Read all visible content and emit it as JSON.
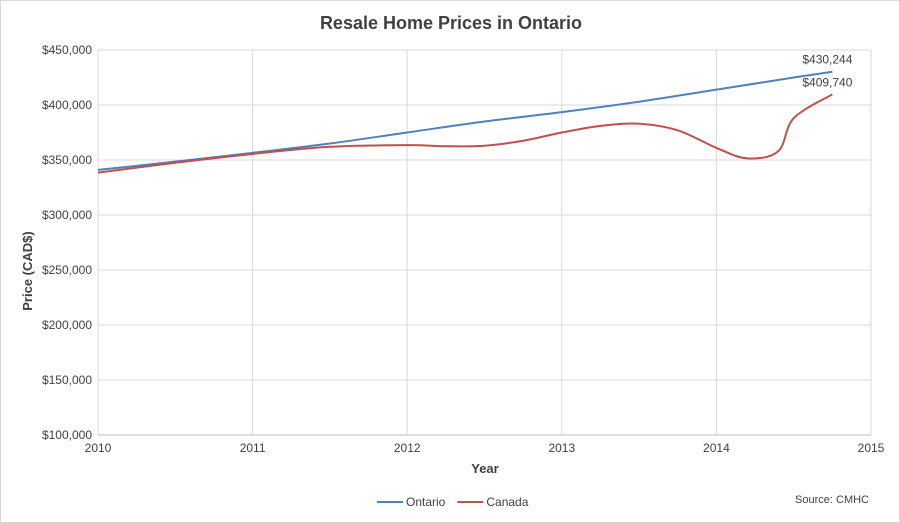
{
  "chart_data": {
    "type": "line",
    "title": "Resale Home Prices in Ontario",
    "xlabel": "Year",
    "ylabel": "Price (CAD$)",
    "source": "Source: CMHC",
    "xlim": [
      2010,
      2015
    ],
    "ylim": [
      100000,
      450000
    ],
    "x_ticks": [
      2010,
      2011,
      2012,
      2013,
      2014,
      2015
    ],
    "x_tick_labels": [
      "2010",
      "2011",
      "2012",
      "2013",
      "2014",
      "2015"
    ],
    "y_ticks": [
      100000,
      150000,
      200000,
      250000,
      300000,
      350000,
      400000,
      450000
    ],
    "y_tick_labels": [
      "$100,000",
      "$150,000",
      "$200,000",
      "$250,000",
      "$300,000",
      "$350,000",
      "$400,000",
      "$450,000"
    ],
    "grid": true,
    "legend_position": "bottom",
    "series": [
      {
        "name": "Ontario",
        "color": "#4f81bd",
        "x": [
          2010,
          2010.5,
          2011,
          2011.5,
          2012,
          2012.5,
          2013,
          2013.5,
          2014,
          2014.5,
          2014.75
        ],
        "y": [
          341000,
          348500,
          356500,
          365000,
          375000,
          385000,
          393500,
          403000,
          414000,
          425000,
          430244
        ],
        "end_label": "$430,244"
      },
      {
        "name": "Canada",
        "color": "#c0504d",
        "x": [
          2010,
          2010.5,
          2011,
          2011.5,
          2012,
          2012.25,
          2012.5,
          2012.75,
          2013,
          2013.25,
          2013.5,
          2013.75,
          2014,
          2014.2,
          2014.4,
          2014.5,
          2014.75
        ],
        "y": [
          338500,
          347500,
          355500,
          362000,
          363500,
          362500,
          363000,
          367500,
          375000,
          381000,
          383000,
          377000,
          361000,
          351500,
          358000,
          388000,
          409740
        ],
        "end_label": "$409,740"
      }
    ]
  }
}
